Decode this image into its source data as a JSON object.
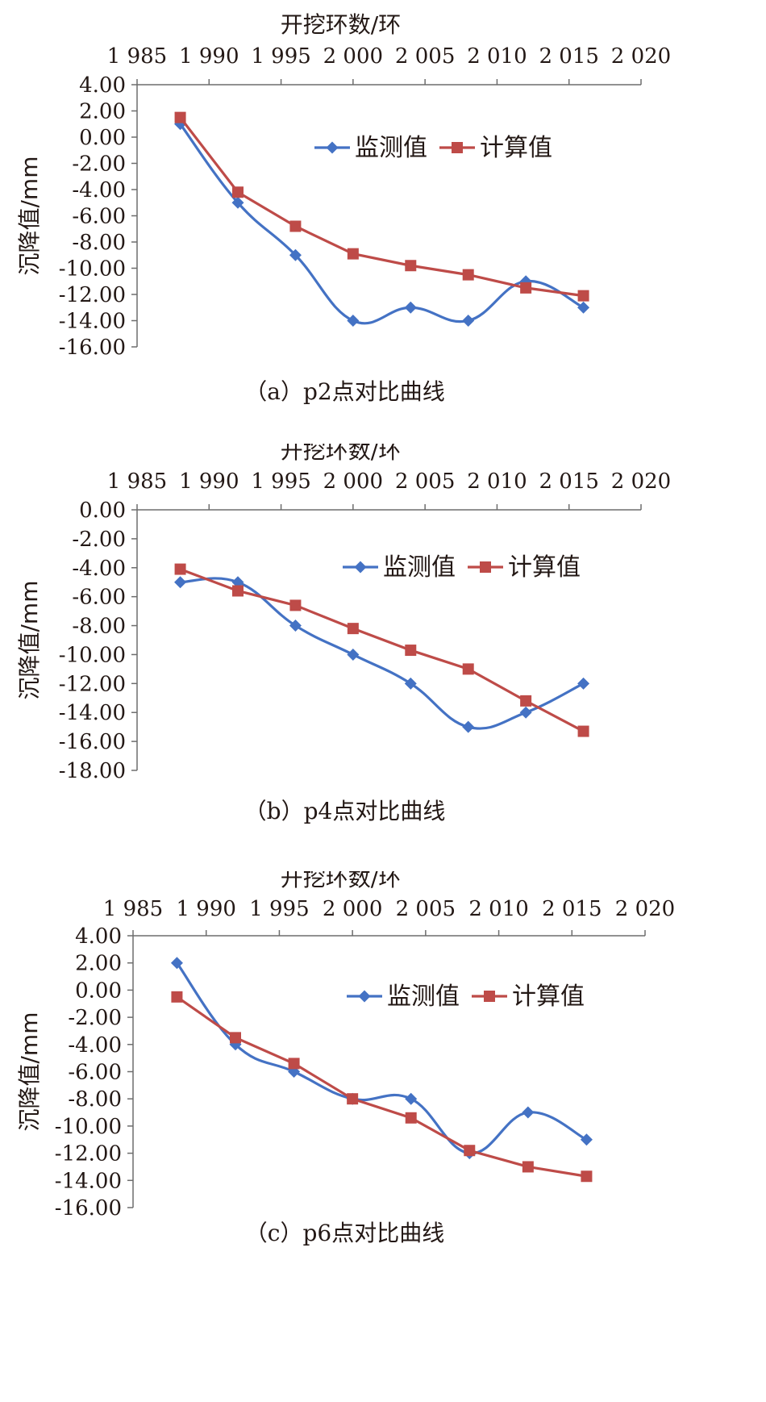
{
  "chart_data": [
    {
      "type": "line",
      "caption": "（a）p2点对比曲线",
      "xlabel": "开挖环数/环",
      "ylabel": "沉降值/mm",
      "x_ticks": [
        "1 985",
        "1 990",
        "1 995",
        "2 000",
        "2 005",
        "2 010",
        "2 015",
        "2 020"
      ],
      "xlim": [
        1985,
        2020
      ],
      "y_ticks": [
        "4.00",
        "2.00",
        "0.00",
        "-2.00",
        "-4.00",
        "-6.00",
        "-8.00",
        "-10.00",
        "-12.00",
        "-14.00",
        "-16.00"
      ],
      "ylim": [
        -16,
        4
      ],
      "legend": "top-right",
      "x": [
        1988,
        1992,
        1996,
        2000,
        2004,
        2008,
        2012,
        2016
      ],
      "series": [
        {
          "name": "监测值",
          "color": "#4472C4",
          "marker": "diamond",
          "smooth": true,
          "values": [
            1.0,
            -5.0,
            -9.0,
            -14.0,
            -13.0,
            -14.0,
            -11.0,
            -13.0
          ]
        },
        {
          "name": "计算值",
          "color": "#BE4B48",
          "marker": "square",
          "smooth": false,
          "values": [
            1.5,
            -4.2,
            -6.8,
            -8.9,
            -9.8,
            -10.5,
            -11.5,
            -12.1
          ]
        }
      ]
    },
    {
      "type": "line",
      "caption": "（b）p4点对比曲线",
      "xlabel": "开挖环数/环",
      "ylabel": "沉降值/mm",
      "x_ticks": [
        "1 985",
        "1 990",
        "1 995",
        "2 000",
        "2 005",
        "2 010",
        "2 015",
        "2 020"
      ],
      "xlim": [
        1985,
        2020
      ],
      "y_ticks": [
        "0.00",
        "-2.00",
        "-4.00",
        "-6.00",
        "-8.00",
        "-10.00",
        "-12.00",
        "-14.00",
        "-16.00",
        "-18.00"
      ],
      "ylim": [
        -18,
        0
      ],
      "legend": "top-right",
      "x": [
        1988,
        1992,
        1996,
        2000,
        2004,
        2008,
        2012,
        2016
      ],
      "series": [
        {
          "name": "监测值",
          "color": "#4472C4",
          "marker": "diamond",
          "smooth": true,
          "values": [
            -5.0,
            -5.0,
            -8.0,
            -10.0,
            -12.0,
            -15.0,
            -14.0,
            -12.0
          ]
        },
        {
          "name": "计算值",
          "color": "#BE4B48",
          "marker": "square",
          "smooth": false,
          "values": [
            -4.1,
            -5.6,
            -6.6,
            -8.2,
            -9.7,
            -11.0,
            -13.2,
            -15.3
          ]
        }
      ]
    },
    {
      "type": "line",
      "caption": "（c）p6点对比曲线",
      "xlabel": "开挖环数/环",
      "ylabel": "沉降值/mm",
      "x_ticks": [
        "1 985",
        "1 990",
        "1 995",
        "2 000",
        "2 005",
        "2 010",
        "2 015",
        "2 020"
      ],
      "xlim": [
        1985,
        2020
      ],
      "y_ticks": [
        "4.00",
        "2.00",
        "0.00",
        "-2.00",
        "-4.00",
        "-6.00",
        "-8.00",
        "-10.00",
        "-12.00",
        "-14.00",
        "-16.00"
      ],
      "ylim": [
        -16,
        4
      ],
      "legend": "top-right",
      "x": [
        1988,
        1992,
        1996,
        2000,
        2004,
        2008,
        2012,
        2016
      ],
      "series": [
        {
          "name": "监测值",
          "color": "#4472C4",
          "marker": "diamond",
          "smooth": true,
          "values": [
            2.0,
            -4.0,
            -6.0,
            -8.0,
            -8.0,
            -12.0,
            -9.0,
            -11.0
          ]
        },
        {
          "name": "计算值",
          "color": "#BE4B48",
          "marker": "square",
          "smooth": false,
          "values": [
            -0.5,
            -3.5,
            -5.4,
            -8.0,
            -9.4,
            -11.8,
            -13.0,
            -13.7
          ]
        }
      ]
    }
  ]
}
